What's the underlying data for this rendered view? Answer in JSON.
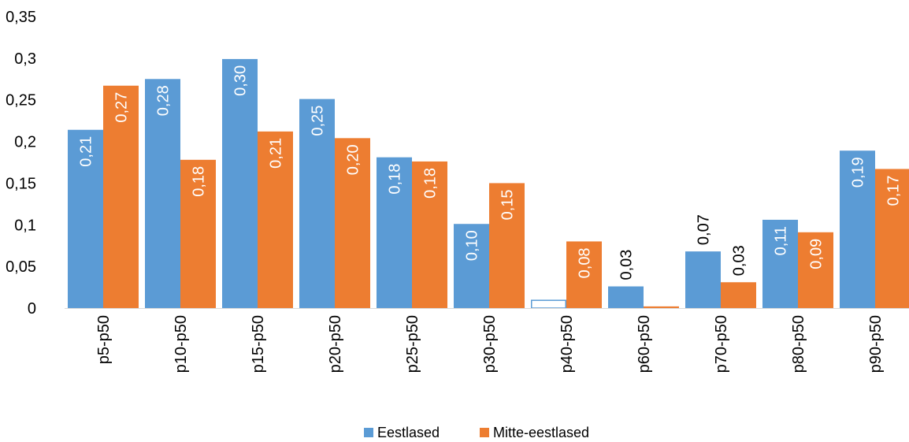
{
  "chart_data": {
    "type": "bar",
    "title": "",
    "xlabel": "",
    "ylabel": "",
    "ylim": [
      0,
      0.35
    ],
    "yticks": [
      0,
      0.05,
      0.1,
      0.15,
      0.2,
      0.25,
      0.3,
      0.35
    ],
    "ytick_labels": [
      "0",
      "0,05",
      "0,1",
      "0,15",
      "0,2",
      "0,25",
      "0,3",
      "0,35"
    ],
    "grid": false,
    "legend_position": "bottom",
    "categories": [
      "p5-p50",
      "p10-p50",
      "p15-p50",
      "p20-p50",
      "p25-p50",
      "p30-p50",
      "p40-p50",
      "p60-p50",
      "p70-p50",
      "p80-p50",
      "p90-p50"
    ],
    "series": [
      {
        "name": "Eestlased",
        "color": "#5B9BD5",
        "values": [
          0.214,
          0.275,
          0.299,
          0.251,
          0.181,
          0.101,
          0.01,
          0.026,
          0.068,
          0.106,
          0.189
        ],
        "labels": [
          "0,21",
          "0,28",
          "0,30",
          "0,25",
          "0,18",
          "0,10",
          "",
          "0,03",
          "0,07",
          "0,11",
          "0,19"
        ],
        "hollow": [
          false,
          false,
          false,
          false,
          false,
          false,
          true,
          false,
          false,
          false,
          false
        ]
      },
      {
        "name": "Mitte-eestlased",
        "color": "#ED7D31",
        "values": [
          0.267,
          0.178,
          0.212,
          0.204,
          0.176,
          0.15,
          0.08,
          0.002,
          0.031,
          0.091,
          0.167
        ],
        "labels": [
          "0,27",
          "0,18",
          "0,21",
          "0,20",
          "0,18",
          "0,15",
          "0,08",
          "",
          "0,03",
          "0,09",
          "0,17"
        ],
        "hollow": [
          false,
          false,
          false,
          false,
          false,
          false,
          false,
          false,
          false,
          false,
          false
        ]
      }
    ]
  }
}
